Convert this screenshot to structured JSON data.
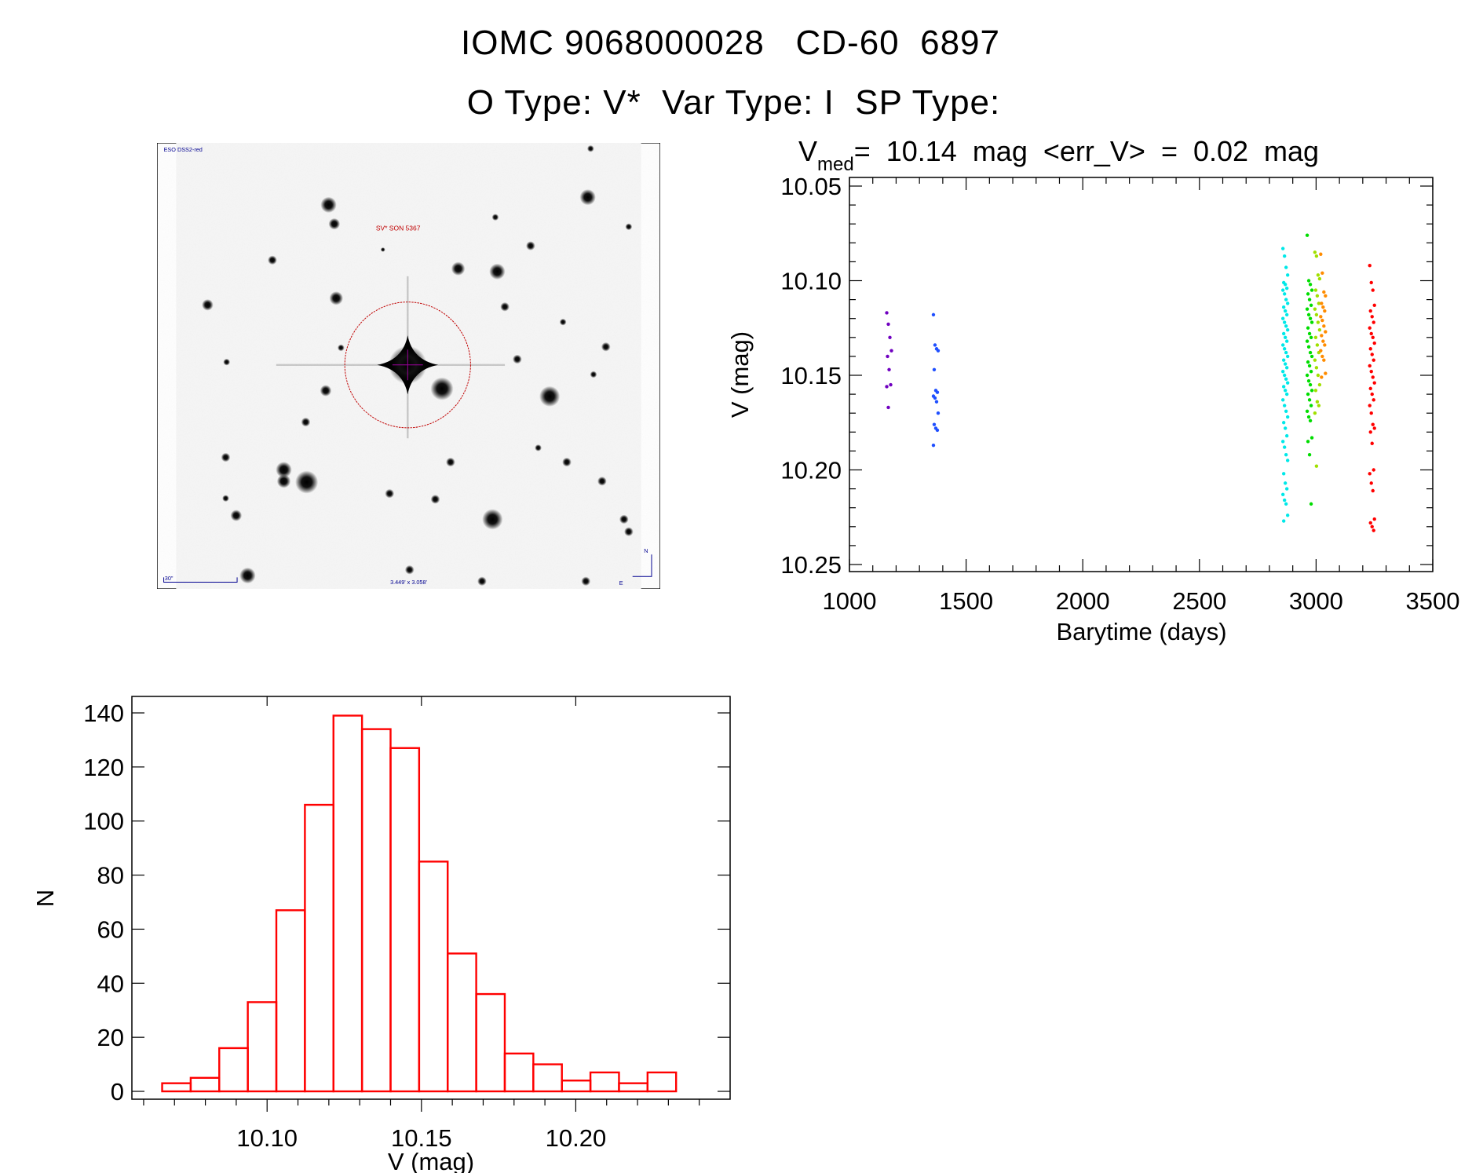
{
  "title": {
    "line1": "IOMC 9068000028   CD-60  6897",
    "line2": "O Type: V*  Var Type: I  SP Type:"
  },
  "image": {
    "survey_label": "ESO DSS2-red",
    "target_label": "SV* SON 5367",
    "scale_label": "30\"",
    "fov_label": "3.449' x 3.058'",
    "north_label": "N",
    "east_label": "E"
  },
  "chart_data": [
    {
      "type": "scatter",
      "title_main": "V",
      "title_sub": "med",
      "title_rest": "=  10.14  mag  <err_V>  =  0.02  mag",
      "xlabel": "Barytime (days)",
      "ylabel": "V (mag)",
      "xlim": [
        1000,
        3500
      ],
      "ylim": [
        10.2545,
        10.0455
      ],
      "xticks": [
        "1000",
        "1500",
        "2000",
        "2500",
        "3000",
        "3500"
      ],
      "yticks": [
        "10.05",
        "10.10",
        "10.15",
        "10.20",
        "10.25"
      ],
      "series": [
        {
          "name": "season-1",
          "color": "#7000c0",
          "x": 1170,
          "values": [
            10.117,
            10.123,
            10.13,
            10.137,
            10.14,
            10.147,
            10.155,
            10.156,
            10.167
          ]
        },
        {
          "name": "season-2",
          "color": "#1f4fff",
          "x": 1370,
          "values": [
            10.118,
            10.134,
            10.136,
            10.137,
            10.147,
            10.158,
            10.159,
            10.161,
            10.162,
            10.164,
            10.17,
            10.176,
            10.178,
            10.179,
            10.187
          ]
        },
        {
          "name": "season-3",
          "color": "#00e8e8",
          "x": 2868,
          "values": [
            10.083,
            10.087,
            10.093,
            10.097,
            10.101,
            10.102,
            10.104,
            10.105,
            10.107,
            10.11,
            10.112,
            10.114,
            10.116,
            10.118,
            10.12,
            10.122,
            10.124,
            10.126,
            10.128,
            10.13,
            10.132,
            10.134,
            10.136,
            10.138,
            10.14,
            10.142,
            10.144,
            10.146,
            10.148,
            10.15,
            10.152,
            10.154,
            10.156,
            10.158,
            10.16,
            10.163,
            10.166,
            10.169,
            10.172,
            10.175,
            10.178,
            10.182,
            10.185,
            10.188,
            10.192,
            10.195,
            10.202,
            10.207,
            10.21,
            10.213,
            10.216,
            10.218,
            10.224,
            10.227
          ]
        },
        {
          "name": "season-4",
          "color": "#00dd00",
          "x": 2972,
          "values": [
            10.076,
            10.1,
            10.102,
            10.105,
            10.107,
            10.11,
            10.113,
            10.115,
            10.118,
            10.12,
            10.122,
            10.125,
            10.128,
            10.13,
            10.132,
            10.135,
            10.138,
            10.14,
            10.143,
            10.145,
            10.148,
            10.15,
            10.153,
            10.155,
            10.158,
            10.16,
            10.163,
            10.166,
            10.169,
            10.172,
            10.174,
            10.183,
            10.185,
            10.192,
            10.218
          ]
        },
        {
          "name": "season-5",
          "color": "#a0e000",
          "x": 3005,
          "values": [
            10.085,
            10.087,
            10.097,
            10.099,
            10.105,
            10.108,
            10.112,
            10.115,
            10.118,
            10.122,
            10.126,
            10.13,
            10.134,
            10.138,
            10.142,
            10.146,
            10.15,
            10.155,
            10.158,
            10.164,
            10.166,
            10.17,
            10.198
          ]
        },
        {
          "name": "season-6",
          "color": "#ff8c00",
          "x": 3030,
          "values": [
            10.086,
            10.096,
            10.106,
            10.108,
            10.112,
            10.114,
            10.116,
            10.119,
            10.121,
            10.124,
            10.127,
            10.129,
            10.132,
            10.134,
            10.137,
            10.14,
            10.142,
            10.149,
            10.151
          ]
        },
        {
          "name": "season-7",
          "color": "#ff0000",
          "x": 3240,
          "values": [
            10.092,
            10.101,
            10.105,
            10.113,
            10.116,
            10.119,
            10.122,
            10.125,
            10.128,
            10.13,
            10.133,
            10.136,
            10.139,
            10.142,
            10.145,
            10.148,
            10.151,
            10.154,
            10.157,
            10.16,
            10.163,
            10.166,
            10.17,
            10.176,
            10.178,
            10.18,
            10.186,
            10.2,
            10.202,
            10.207,
            10.211,
            10.226,
            10.228,
            10.23,
            10.232
          ]
        }
      ]
    },
    {
      "type": "bar",
      "subtype": "histogram",
      "xlabel": "V (mag)",
      "ylabel": "N",
      "xlim": [
        10.0562,
        10.25
      ],
      "ylim": [
        -2.9,
        146.1
      ],
      "xticks": [
        "10.10",
        "10.15",
        "10.20"
      ],
      "yticks": [
        "0",
        "20",
        "40",
        "60",
        "80",
        "100",
        "120",
        "140"
      ],
      "bin_start": 10.066,
      "bin_width": 0.00925,
      "color": "#ff0000",
      "values": [
        3,
        5,
        16,
        33,
        67,
        106,
        139,
        134,
        127,
        85,
        51,
        36,
        14,
        10,
        4,
        7,
        3,
        7
      ]
    }
  ]
}
